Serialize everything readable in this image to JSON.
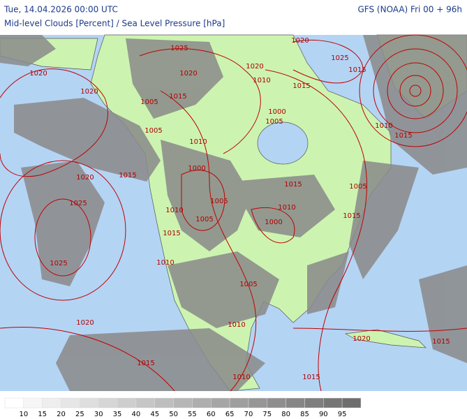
{
  "header": {
    "valid_time": "Tue, 14.04.2026 00:00 UTC",
    "model": "GFS (NOAA) Fri 00 + 96h",
    "parameter": "Mid-level Clouds [Percent] / Sea Level Pressure [hPa]"
  },
  "isobar_labels": [
    "1025",
    "1020",
    "1020",
    "1020",
    "1015",
    "1005",
    "1020",
    "1010",
    "1015",
    "1020",
    "1025",
    "1015",
    "1000",
    "1005",
    "1005",
    "1010",
    "1010",
    "1015",
    "1020",
    "1015",
    "1000",
    "1015",
    "1005",
    "1025",
    "1005",
    "1010",
    "1005",
    "1010",
    "1015",
    "1000",
    "1015",
    "1025",
    "1010",
    "1005",
    "1010",
    "1020",
    "1020",
    "1015",
    "1015",
    "1015",
    "1010"
  ],
  "colorbar": {
    "ticks": [
      10,
      15,
      20,
      25,
      30,
      35,
      40,
      45,
      50,
      55,
      60,
      65,
      70,
      75,
      80,
      85,
      90,
      95
    ],
    "colors": [
      "#ffffff",
      "#f6f6f6",
      "#eeeeee",
      "#e6e6e6",
      "#dedede",
      "#d6d6d6",
      "#cecece",
      "#c6c6c6",
      "#bebebe",
      "#b6b6b6",
      "#aeaeae",
      "#a6a6a6",
      "#9e9e9e",
      "#969696",
      "#8e8e8e",
      "#868686",
      "#7e7e7e",
      "#767676",
      "#6e6e6e"
    ]
  }
}
